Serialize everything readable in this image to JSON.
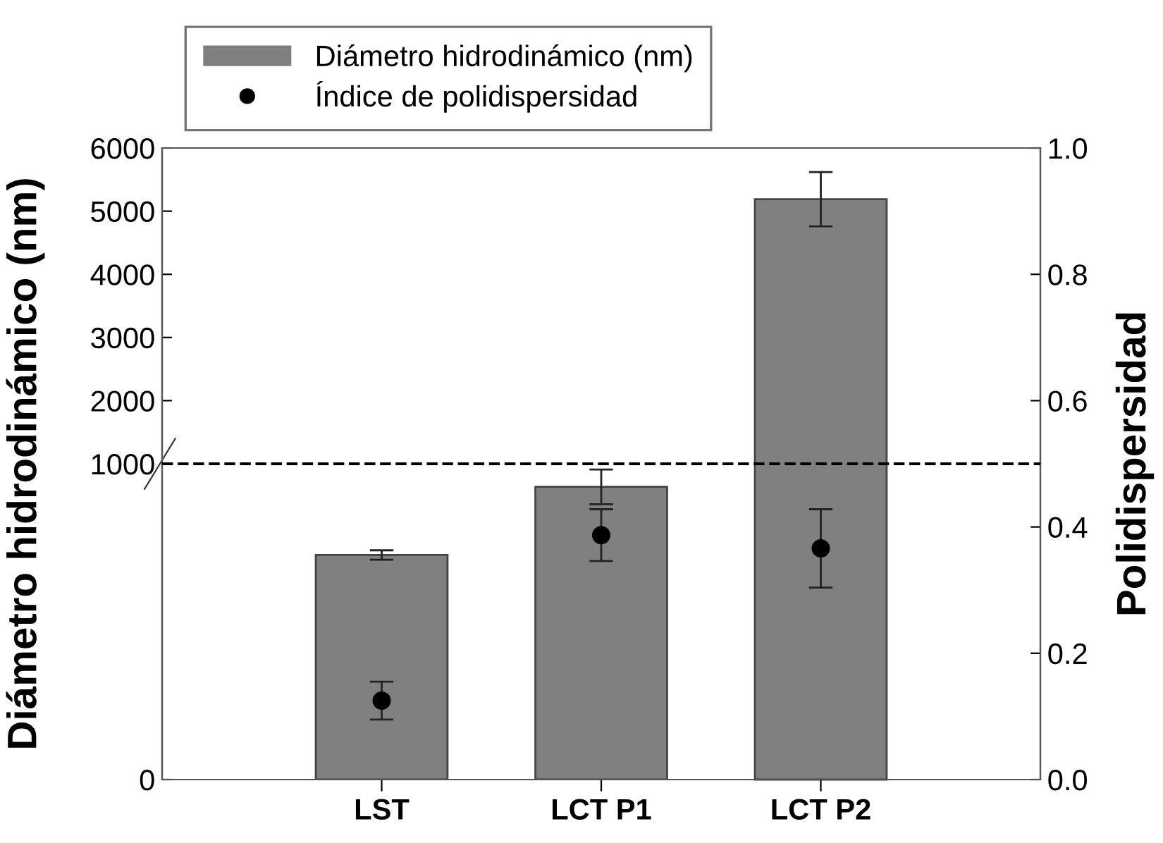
{
  "chart_data": [
    {
      "type": "bar",
      "ylabel": "Diámetro hidrodinámico (nm)",
      "y2label": "Polidispersidad",
      "categories": [
        null,
        null,
        null
      ],
      "series": [
        {
          "name": "Diámetro hidrodinámico (nm)",
          "color": "#808080",
          "values": [
            null,
            null,
            5190
          ],
          "errors": [
            null,
            null,
            430
          ]
        },
        {
          "name": "Índice de polidispersidad",
          "type": "scatter",
          "axis": "y2",
          "color": "#000000",
          "values": [
            null,
            null,
            null
          ]
        }
      ],
      "ylim": [
        1000,
        6000
      ],
      "yticks": [
        2000,
        3000,
        4000,
        5000,
        6000
      ],
      "y2lim": [
        0.5,
        1.0
      ],
      "y2ticks": [
        0.6,
        0.8,
        {
          "value": 1,
          "label": "1.0"
        }
      ],
      "tick_labels": "y",
      "legend": "top left",
      "grid": false
    },
    {
      "type": "bar",
      "categories": [
        "LST",
        "LCT P1",
        "LCT P2"
      ],
      "series": [
        {
          "color": "#808080",
          "values": [
            711,
            927,
            null
          ],
          "errors": [
            15,
            55,
            null
          ]
        },
        {
          "type": "scatter",
          "axis": "y2",
          "color": "#000000",
          "marker": "circle",
          "values": [
            0.125,
            0.387,
            0.366
          ],
          "errors": [
            0.03,
            0.041,
            0.062
          ]
        }
      ],
      "ylim": [
        0,
        1000
      ],
      "yticks": [
        0,
        1000
      ],
      "y2lim": [
        0,
        0.5
      ],
      "y2ticks": [
        {
          "value": 0,
          "label": "0.0"
        },
        0.2,
        0.4
      ],
      "ref_lines": [
        {
          "axis": "y2",
          "value": 0.5,
          "label": null,
          "color": "#000000",
          "line_style": "dashed"
        }
      ],
      "grid": false
    }
  ]
}
